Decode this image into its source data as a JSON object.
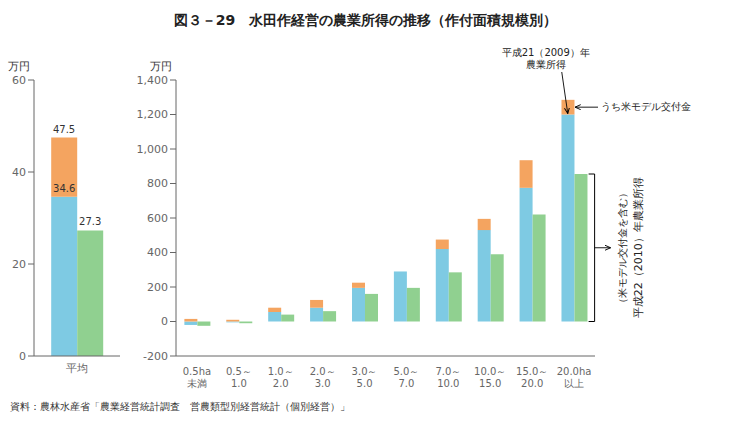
{
  "chart_data": [
    {
      "type": "bar",
      "ylabel": "万円",
      "categories": [
        "平均"
      ],
      "ylim": [
        0,
        60
      ],
      "yticks": [
        0,
        20,
        40,
        60
      ],
      "grid": false,
      "series": [
        {
          "color": "#7ECAE3",
          "values": [
            34.6
          ],
          "data_labels": true
        },
        {
          "color": "#F4A460",
          "values": [
            12.9
          ],
          "stacked": true
        },
        {
          "color": "#90D090",
          "values": [
            27.3
          ],
          "data_labels": true
        }
      ],
      "annotations": [
        {
          "label": "47.5",
          "value": 47.5
        }
      ]
    },
    {
      "type": "bar",
      "title": "図３－29　水田作経営の農業所得の推移（作付面積規模別）",
      "source": "資料：農林水産省「農業経営統計調査　営農類型別経営統計（個別経営）」",
      "ylabel": "万円",
      "categories": [
        "0.5ha\n未満",
        "0.5～\n1.0",
        "1.0～\n2.0",
        "2.0～\n3.0",
        "3.0～\n5.0",
        "5.0～\n7.0",
        "7.0～\n10.0",
        "10.0～\n15.0",
        "15.0～\n20.0",
        "20.0ha\n以上"
      ],
      "ylim": [
        -200,
        1400
      ],
      "yticks": [
        -200,
        0,
        200,
        400,
        600,
        800,
        {
          "value": 1000,
          "label": "1,000"
        },
        {
          "value": 1200,
          "label": "1,200"
        },
        {
          "value": 1400,
          "label": "1,400"
        }
      ],
      "grid": false,
      "series": [
        {
          "color": "#7ECAE3",
          "values": [
            -20,
            -5,
            55,
            80,
            195,
            290,
            420,
            530,
            775,
            1200
          ]
        },
        {
          "color": "#F4A460",
          "values": [
            15,
            10,
            25,
            45,
            30,
            0,
            55,
            65,
            160,
            85
          ],
          "stacked": true
        },
        {
          "color": "#90D090",
          "values": [
            -25,
            -10,
            40,
            60,
            160,
            195,
            285,
            390,
            620,
            855
          ]
        }
      ],
      "annotations": [
        {
          "text": "平成21（2009）年"
        },
        {
          "text": "農業所得"
        },
        {
          "text": "うち米モデル交付金"
        },
        {
          "text": "平成22（2010）年農業所得"
        },
        {
          "text": "（米モデル交付金を含む）"
        }
      ]
    }
  ]
}
